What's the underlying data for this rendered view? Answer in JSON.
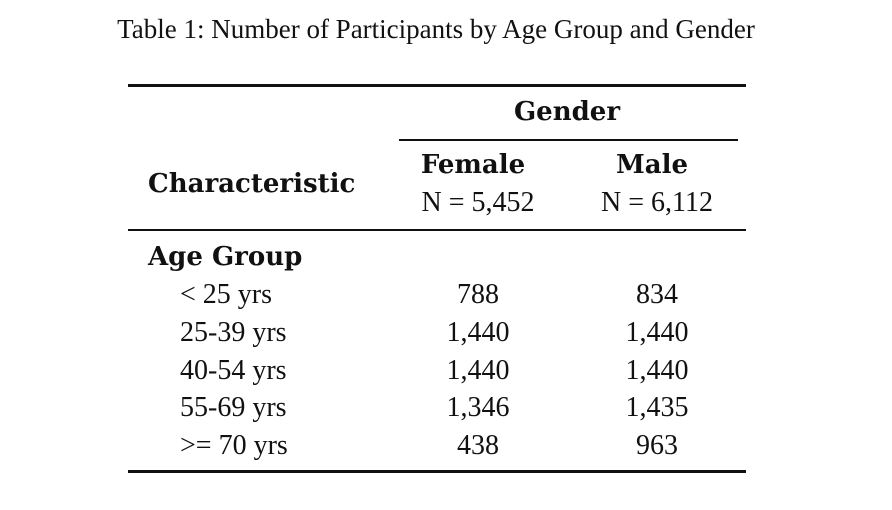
{
  "caption": "Table 1: Number of Participants by Age Group and Gender",
  "header": {
    "spanner": "Gender",
    "characteristic": "Characteristic",
    "columns": [
      {
        "label": "Female",
        "n": "N = 5,452"
      },
      {
        "label": "Male",
        "n": "N = 6,112"
      }
    ]
  },
  "group": {
    "label": "Age Group",
    "rows": [
      {
        "label": "< 25 yrs",
        "female": "788",
        "male": "834"
      },
      {
        "label": "25-39 yrs",
        "female": "1,440",
        "male": "1,440"
      },
      {
        "label": "40-54 yrs",
        "female": "1,440",
        "male": "1,440"
      },
      {
        "label": "55-69 yrs",
        "female": "1,346",
        "male": "1,435"
      },
      {
        "label": ">= 70 yrs",
        "female": "438",
        "male": "963"
      }
    ]
  }
}
